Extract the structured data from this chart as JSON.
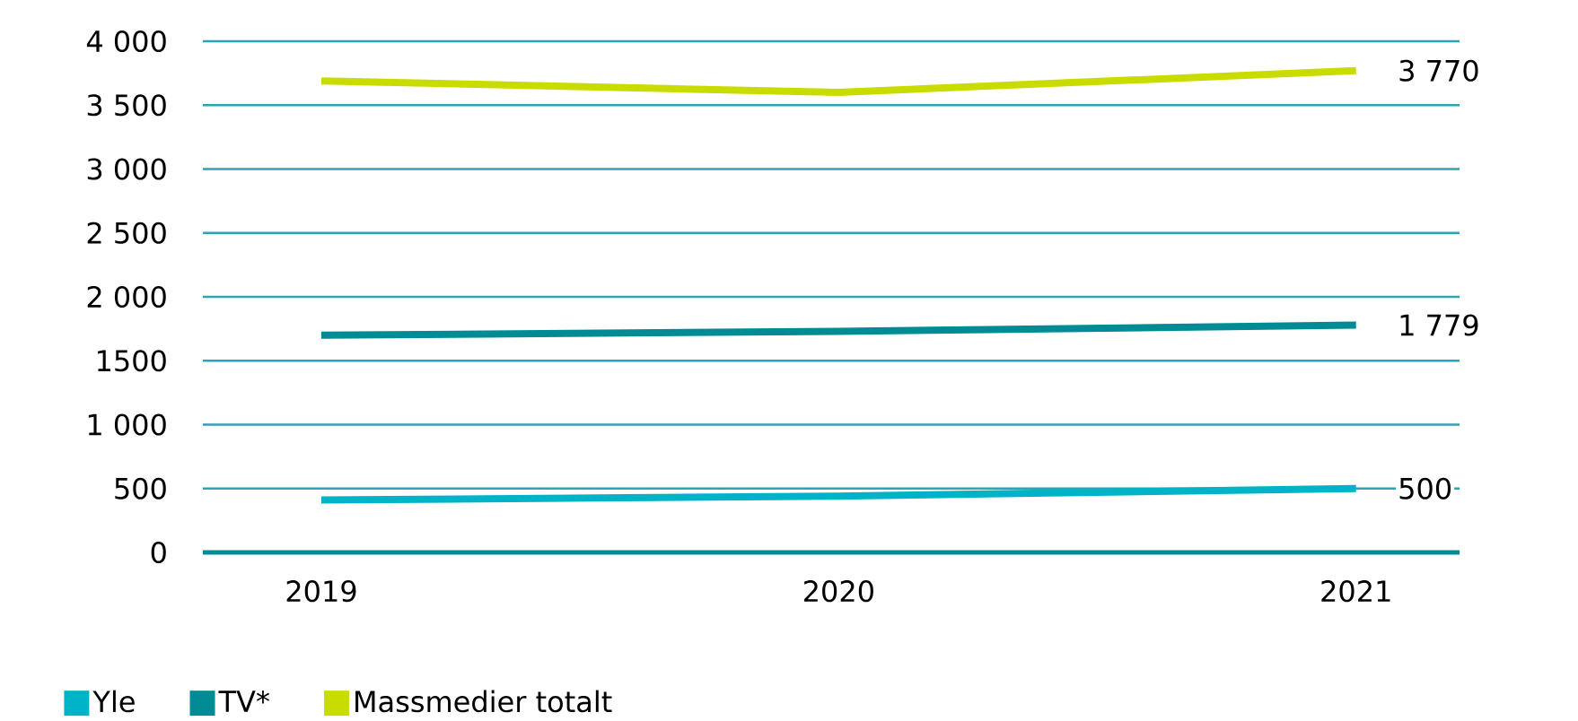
{
  "chart_data": {
    "type": "line",
    "categories": [
      "2019",
      "2020",
      "2021"
    ],
    "series": [
      {
        "name": "Yle",
        "color": "#00b3c7",
        "values": [
          410,
          440,
          500
        ],
        "value_labels": [
          null,
          null,
          "500"
        ]
      },
      {
        "name": "TV*",
        "color": "#008b95",
        "values": [
          1700,
          1730,
          1779
        ],
        "value_labels": [
          null,
          null,
          "1 779"
        ]
      },
      {
        "name": "Massmedier totalt",
        "color": "#c8dc00",
        "values": [
          3690,
          3600,
          3770
        ],
        "value_labels": [
          null,
          null,
          "3 770"
        ]
      }
    ],
    "ylim": [
      0,
      4000
    ],
    "yticks": [
      0,
      500,
      {
        "value": 1000,
        "label": "1 000"
      },
      1500,
      {
        "value": 2000,
        "label": "2 000"
      },
      {
        "value": 2500,
        "label": "2 500"
      },
      {
        "value": 3000,
        "label": "3 000"
      },
      {
        "value": 3500,
        "label": "3 500"
      },
      {
        "value": 4000,
        "label": "4 000"
      }
    ],
    "grid": "y",
    "legend": "bottom left",
    "marker": "none",
    "line_style": "solid"
  }
}
